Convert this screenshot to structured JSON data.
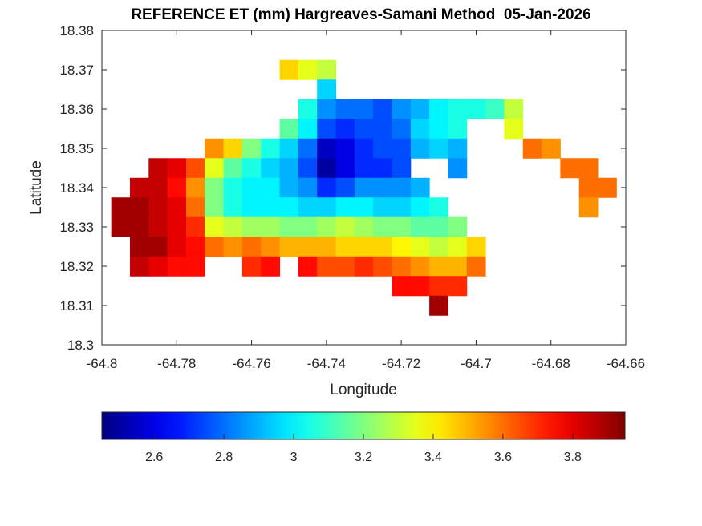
{
  "chart_data": {
    "type": "heatmap",
    "title": "REFERENCE ET (mm) Hargreaves-Samani Method  05-Jan-2026",
    "xlabel": "Longitude",
    "ylabel": "Latitude",
    "xlim": [
      -64.8,
      -64.66
    ],
    "ylim": [
      18.3,
      18.38
    ],
    "xticks": [
      "-64.8",
      "-64.78",
      "-64.76",
      "-64.74",
      "-64.72",
      "-64.7",
      "-64.68",
      "-64.66"
    ],
    "yticks": [
      "18.3",
      "18.31",
      "18.32",
      "18.33",
      "18.34",
      "18.35",
      "18.36",
      "18.37",
      "18.38"
    ],
    "grid": false,
    "colormap": "jet",
    "colorbar": {
      "placement": "bottom",
      "range": [
        2.45,
        3.95
      ],
      "ticks": [
        "2.6",
        "2.8",
        "3",
        "3.2",
        "3.4",
        "3.6",
        "3.8"
      ]
    },
    "lon": [
      -64.795,
      -64.79,
      -64.785,
      -64.78,
      -64.775,
      -64.77,
      -64.765,
      -64.76,
      -64.755,
      -64.75,
      -64.745,
      -64.74,
      -64.735,
      -64.73,
      -64.725,
      -64.72,
      -64.715,
      -64.71,
      -64.705,
      -64.7,
      -64.695,
      -64.69,
      -64.685,
      -64.68,
      -64.675,
      -64.67,
      -64.665
    ],
    "lat": [
      18.37,
      18.365,
      18.36,
      18.355,
      18.35,
      18.345,
      18.34,
      18.335,
      18.33,
      18.325,
      18.32,
      18.315,
      18.31
    ],
    "values": [
      [
        null,
        null,
        null,
        null,
        null,
        null,
        null,
        null,
        null,
        3.45,
        3.35,
        3.3,
        null,
        null,
        null,
        null,
        null,
        null,
        null,
        null,
        null,
        null,
        null,
        null,
        null,
        null,
        null
      ],
      [
        null,
        null,
        null,
        null,
        null,
        null,
        null,
        null,
        null,
        null,
        null,
        2.95,
        null,
        null,
        null,
        null,
        null,
        null,
        null,
        null,
        null,
        null,
        null,
        null,
        null,
        null,
        null
      ],
      [
        null,
        null,
        null,
        null,
        null,
        null,
        null,
        null,
        null,
        null,
        3.05,
        2.85,
        2.8,
        2.8,
        2.75,
        2.85,
        2.9,
        3.0,
        3.05,
        3.05,
        3.1,
        3.3,
        null,
        null,
        null,
        null,
        null
      ],
      [
        null,
        null,
        null,
        null,
        null,
        null,
        null,
        null,
        null,
        3.15,
        3.0,
        2.75,
        2.7,
        2.75,
        2.75,
        2.8,
        2.95,
        3.0,
        3.05,
        null,
        null,
        3.35,
        null,
        null,
        null,
        null,
        null
      ],
      [
        null,
        null,
        null,
        null,
        null,
        3.55,
        3.45,
        3.2,
        3.05,
        2.95,
        2.8,
        2.55,
        2.6,
        2.7,
        2.75,
        2.75,
        2.9,
        2.95,
        2.9,
        null,
        null,
        null,
        3.6,
        3.55,
        null,
        null,
        null
      ],
      [
        null,
        null,
        3.85,
        3.8,
        3.65,
        3.35,
        3.15,
        3.05,
        2.95,
        2.9,
        2.75,
        2.5,
        2.6,
        2.7,
        2.7,
        2.75,
        null,
        null,
        2.85,
        null,
        null,
        null,
        null,
        null,
        3.6,
        3.6,
        null
      ],
      [
        null,
        3.85,
        3.85,
        3.75,
        3.55,
        3.2,
        3.05,
        3.0,
        3.0,
        2.9,
        2.85,
        2.7,
        2.75,
        2.85,
        2.85,
        2.85,
        2.9,
        null,
        null,
        null,
        null,
        null,
        null,
        null,
        null,
        3.6,
        3.6
      ],
      [
        3.9,
        3.9,
        3.85,
        3.8,
        3.6,
        3.2,
        3.05,
        3.0,
        3.0,
        3.0,
        2.95,
        2.95,
        3.0,
        3.0,
        2.95,
        2.95,
        3.0,
        3.05,
        null,
        null,
        null,
        null,
        null,
        null,
        null,
        3.55,
        null
      ],
      [
        3.9,
        3.9,
        3.85,
        3.8,
        3.7,
        3.35,
        3.3,
        3.25,
        3.25,
        3.2,
        3.2,
        3.25,
        3.3,
        3.25,
        3.2,
        3.2,
        3.15,
        3.15,
        3.2,
        null,
        null,
        null,
        null,
        null,
        null,
        null,
        null
      ],
      [
        null,
        3.9,
        3.9,
        3.8,
        3.75,
        3.6,
        3.55,
        3.6,
        3.55,
        3.5,
        3.5,
        3.5,
        3.45,
        3.45,
        3.45,
        3.4,
        3.35,
        3.3,
        3.35,
        3.45,
        null,
        null,
        null,
        null,
        null,
        null,
        null
      ],
      [
        null,
        3.85,
        3.8,
        3.75,
        3.75,
        null,
        null,
        3.7,
        3.75,
        null,
        3.75,
        3.65,
        3.65,
        3.7,
        3.65,
        3.6,
        3.55,
        3.5,
        3.5,
        3.6,
        null,
        null,
        null,
        null,
        null,
        null,
        null
      ],
      [
        null,
        null,
        null,
        null,
        null,
        null,
        null,
        null,
        null,
        null,
        null,
        null,
        null,
        null,
        null,
        3.75,
        3.75,
        3.7,
        3.7,
        null,
        null,
        null,
        null,
        null,
        null,
        null,
        null
      ],
      [
        null,
        null,
        null,
        null,
        null,
        null,
        null,
        null,
        null,
        null,
        null,
        null,
        null,
        null,
        null,
        null,
        null,
        3.9,
        null,
        null,
        null,
        null,
        null,
        null,
        null,
        null,
        null
      ]
    ]
  }
}
